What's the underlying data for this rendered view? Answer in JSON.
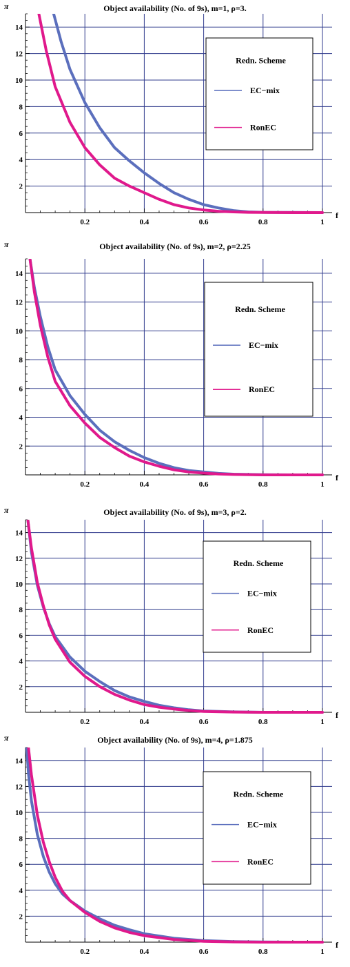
{
  "chart_data": [
    {
      "type": "line",
      "title": "Object availability (No. of 9s), m=1, ρ=3.",
      "xlabel": "f",
      "ylabel": "π",
      "xlim": [
        0,
        1
      ],
      "ylim": [
        0,
        15
      ],
      "xticks": [
        "0.2",
        "0.4",
        "0.6",
        "0.8",
        "1"
      ],
      "yticks": [
        "2",
        "4",
        "6",
        "8",
        "10",
        "12",
        "14"
      ],
      "grid": true,
      "legend": {
        "title": "Redn. Scheme",
        "placement": "right"
      },
      "series": [
        {
          "name": "EC−mix",
          "color": "#5b6fbd",
          "x": [
            0.095,
            0.12,
            0.15,
            0.2,
            0.25,
            0.3,
            0.35,
            0.4,
            0.45,
            0.5,
            0.55,
            0.6,
            0.65,
            0.7,
            0.75,
            0.8,
            0.9,
            1.0
          ],
          "y": [
            15,
            12.9,
            10.8,
            8.3,
            6.4,
            4.9,
            3.9,
            3.0,
            2.2,
            1.5,
            1.0,
            0.6,
            0.35,
            0.15,
            0.05,
            0.02,
            0.01,
            0.0
          ]
        },
        {
          "name": "RonEC",
          "color": "#e0198c",
          "x": [
            0.045,
            0.07,
            0.1,
            0.15,
            0.2,
            0.25,
            0.3,
            0.35,
            0.4,
            0.45,
            0.5,
            0.55,
            0.6,
            0.65,
            0.7,
            0.75,
            0.8,
            0.9,
            1.0
          ],
          "y": [
            15,
            12.2,
            9.5,
            6.8,
            4.9,
            3.6,
            2.6,
            2.0,
            1.5,
            1.0,
            0.6,
            0.35,
            0.2,
            0.1,
            0.05,
            0.02,
            0.01,
            0.0,
            0.0
          ]
        }
      ]
    },
    {
      "type": "line",
      "title": "Object availability (No. of 9s), m=2, ρ=2.25",
      "xlabel": "f",
      "ylabel": "π",
      "xlim": [
        0,
        1
      ],
      "ylim": [
        0,
        15
      ],
      "xticks": [
        "0.2",
        "0.4",
        "0.6",
        "0.8",
        "1"
      ],
      "yticks": [
        "2",
        "4",
        "6",
        "8",
        "10",
        "12",
        "14"
      ],
      "grid": true,
      "legend": {
        "title": "Redn. Scheme",
        "placement": "right"
      },
      "series": [
        {
          "name": "EC−mix",
          "color": "#5b6fbd",
          "x": [
            0.015,
            0.03,
            0.05,
            0.075,
            0.1,
            0.15,
            0.2,
            0.25,
            0.3,
            0.35,
            0.4,
            0.45,
            0.5,
            0.55,
            0.6,
            0.65,
            0.7,
            0.8,
            0.9,
            1.0
          ],
          "y": [
            15,
            13.0,
            11.0,
            8.9,
            7.3,
            5.5,
            4.2,
            3.1,
            2.3,
            1.7,
            1.2,
            0.8,
            0.5,
            0.3,
            0.2,
            0.1,
            0.05,
            0.01,
            0.0,
            0.0
          ]
        },
        {
          "name": "RonEC",
          "color": "#e0198c",
          "x": [
            0.015,
            0.03,
            0.05,
            0.075,
            0.1,
            0.15,
            0.2,
            0.25,
            0.3,
            0.35,
            0.4,
            0.45,
            0.5,
            0.55,
            0.6,
            0.65,
            0.7,
            0.8,
            0.9,
            1.0
          ],
          "y": [
            15,
            12.7,
            10.4,
            8.2,
            6.5,
            4.8,
            3.6,
            2.6,
            1.9,
            1.3,
            0.9,
            0.6,
            0.35,
            0.2,
            0.12,
            0.06,
            0.03,
            0.0,
            0.0,
            0.0
          ]
        }
      ]
    },
    {
      "type": "line",
      "title": "Object availability (No. of 9s), m=3, ρ=2.",
      "xlabel": "f",
      "ylabel": "π",
      "xlim": [
        0,
        1
      ],
      "ylim": [
        0,
        15
      ],
      "xticks": [
        "0.2",
        "0.4",
        "0.6",
        "0.8",
        "1"
      ],
      "yticks": [
        "2",
        "4",
        "6",
        "8",
        "10",
        "12",
        "14"
      ],
      "grid": true,
      "legend": {
        "title": "Redn. Scheme",
        "placement": "right"
      },
      "series": [
        {
          "name": "EC−mix",
          "color": "#5b6fbd",
          "x": [
            0.008,
            0.02,
            0.04,
            0.06,
            0.08,
            0.1,
            0.15,
            0.2,
            0.25,
            0.3,
            0.35,
            0.4,
            0.45,
            0.5,
            0.55,
            0.6,
            0.7,
            0.8,
            0.9,
            1.0
          ],
          "y": [
            15,
            12.5,
            9.9,
            8.2,
            6.9,
            5.9,
            4.3,
            3.2,
            2.4,
            1.7,
            1.2,
            0.85,
            0.55,
            0.35,
            0.2,
            0.1,
            0.03,
            0.0,
            0.0,
            0.0
          ]
        },
        {
          "name": "RonEC",
          "color": "#e0198c",
          "x": [
            0.008,
            0.02,
            0.04,
            0.06,
            0.08,
            0.1,
            0.15,
            0.2,
            0.25,
            0.3,
            0.35,
            0.4,
            0.45,
            0.5,
            0.55,
            0.6,
            0.7,
            0.8,
            0.9,
            1.0
          ],
          "y": [
            15,
            12.8,
            10.1,
            8.3,
            6.8,
            5.7,
            3.9,
            2.8,
            2.0,
            1.4,
            0.95,
            0.6,
            0.4,
            0.25,
            0.14,
            0.07,
            0.02,
            0.0,
            0.0,
            0.0
          ]
        }
      ]
    },
    {
      "type": "line",
      "title": "Object availability (No. of 9s), m=4, ρ=1.875",
      "xlabel": "f",
      "ylabel": "π",
      "xlim": [
        0,
        1
      ],
      "ylim": [
        0,
        15
      ],
      "xticks": [
        "0.2",
        "0.4",
        "0.6",
        "0.8",
        "1"
      ],
      "yticks": [
        "2",
        "4",
        "6",
        "8",
        "10",
        "12",
        "14"
      ],
      "grid": true,
      "legend": {
        "title": "Redn. Scheme",
        "placement": "right"
      },
      "series": [
        {
          "name": "EC−mix",
          "color": "#5b6fbd",
          "x": [
            0.004,
            0.01,
            0.02,
            0.04,
            0.06,
            0.08,
            0.1,
            0.125,
            0.15,
            0.2,
            0.25,
            0.3,
            0.35,
            0.4,
            0.5,
            0.6,
            0.7,
            0.8,
            0.9,
            1.0
          ],
          "y": [
            15,
            13.0,
            10.9,
            8.3,
            6.6,
            5.4,
            4.5,
            3.7,
            3.2,
            2.4,
            1.8,
            1.3,
            0.95,
            0.65,
            0.3,
            0.12,
            0.04,
            0.01,
            0.0,
            0.0
          ]
        },
        {
          "name": "RonEC",
          "color": "#e0198c",
          "x": [
            0.01,
            0.02,
            0.04,
            0.06,
            0.08,
            0.1,
            0.125,
            0.15,
            0.2,
            0.25,
            0.3,
            0.35,
            0.4,
            0.5,
            0.6,
            0.7,
            0.8,
            0.9,
            1.0
          ],
          "y": [
            15,
            12.9,
            9.8,
            7.7,
            6.2,
            5.0,
            3.9,
            3.2,
            2.3,
            1.6,
            1.1,
            0.75,
            0.5,
            0.2,
            0.07,
            0.02,
            0.0,
            0.0,
            0.0
          ]
        }
      ]
    }
  ]
}
